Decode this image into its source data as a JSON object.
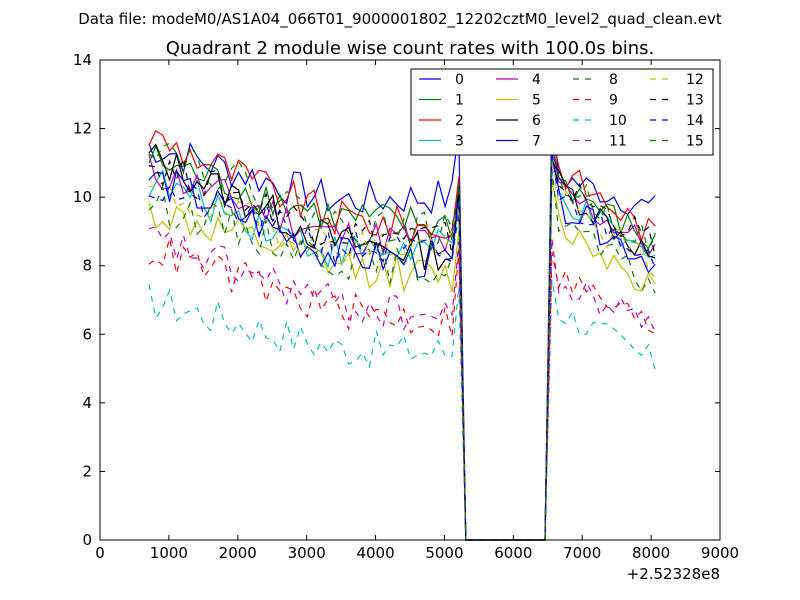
{
  "header": {
    "data_file": "Data file: modeM0/AS1A04_066T01_9000001802_12202cztM0_level2_quad_clean.evt"
  },
  "chart_data": {
    "type": "line",
    "title": "Quadrant 2 module wise count rates with 100.0s bins.",
    "xlabel": "",
    "ylabel": "",
    "x_offset_label": "+2.52328e8",
    "xlim": [
      0,
      9000
    ],
    "ylim": [
      0,
      14
    ],
    "x_ticks": [
      0,
      1000,
      2000,
      3000,
      4000,
      5000,
      6000,
      7000,
      8000,
      9000
    ],
    "y_ticks": [
      0,
      2,
      4,
      6,
      8,
      10,
      12,
      14
    ],
    "grid": false,
    "legend_position": "top-right",
    "legend_columns": 4,
    "x_first": 710,
    "x_step": 100,
    "gap_start": 5310,
    "gap_end": 6460,
    "x_last": 8110,
    "series": [
      {
        "name": "0",
        "color": "#0000ff",
        "dash": "solid",
        "base": 11.5,
        "mid": 9.9,
        "late_base": 10.0,
        "after": 10.6,
        "end": 9.6,
        "peak_before": 11.9,
        "peak_after": 12.7
      },
      {
        "name": "1",
        "color": "#008000",
        "dash": "solid",
        "base": 11.1,
        "mid": 9.4,
        "late_base": 9.2,
        "after": 10.5,
        "end": 8.5,
        "peak_before": 10.5,
        "peak_after": 11.7
      },
      {
        "name": "2",
        "color": "#ff0000",
        "dash": "solid",
        "base": 11.8,
        "mid": 9.4,
        "late_base": 9.1,
        "after": 10.8,
        "end": 8.8,
        "peak_before": 10.6,
        "peak_after": 11.8
      },
      {
        "name": "3",
        "color": "#00bfbf",
        "dash": "solid",
        "base": 10.5,
        "mid": 8.4,
        "late_base": 8.5,
        "after": 10.0,
        "end": 8.0,
        "peak_before": 10.1,
        "peak_after": 11.6
      },
      {
        "name": "4",
        "color": "#bf00bf",
        "dash": "solid",
        "base": 10.8,
        "mid": 8.9,
        "late_base": 8.7,
        "after": 10.2,
        "end": 8.4,
        "peak_before": 10.2,
        "peak_after": 11.5
      },
      {
        "name": "5",
        "color": "#bfbf00",
        "dash": "solid",
        "base": 9.6,
        "mid": 8.0,
        "late_base": 7.7,
        "after": 9.2,
        "end": 7.3,
        "peak_before": 9.0,
        "peak_after": 10.5
      },
      {
        "name": "6",
        "color": "#000000",
        "dash": "solid",
        "base": 11.2,
        "mid": 8.7,
        "late_base": 8.4,
        "after": 10.4,
        "end": 8.1,
        "peak_before": 10.2,
        "peak_after": 11.0
      },
      {
        "name": "7",
        "color": "#0000ff",
        "dash": "solid",
        "base": 10.6,
        "mid": 8.3,
        "late_base": 8.1,
        "after": 9.8,
        "end": 8.0,
        "peak_before": 10.0,
        "peak_after": 11.2
      },
      {
        "name": "8",
        "color": "#008000",
        "dash": "dashed",
        "base": 9.9,
        "mid": 8.2,
        "late_base": 7.9,
        "after": 9.4,
        "end": 7.2,
        "peak_before": 9.5,
        "peak_after": 10.8
      },
      {
        "name": "9",
        "color": "#ff0000",
        "dash": "dashed",
        "base": 8.5,
        "mid": 6.7,
        "late_base": 6.4,
        "after": 7.7,
        "end": 6.1,
        "peak_before": 8.5,
        "peak_after": 8.4
      },
      {
        "name": "10",
        "color": "#00bfbf",
        "dash": "dashed",
        "base": 7.0,
        "mid": 5.6,
        "late_base": 5.5,
        "after": 6.7,
        "end": 5.1,
        "peak_before": 7.4,
        "peak_after": 7.6
      },
      {
        "name": "11",
        "color": "#bf00bf",
        "dash": "dashed",
        "base": 8.8,
        "mid": 6.9,
        "late_base": 6.5,
        "after": 7.4,
        "end": 6.3,
        "peak_before": 8.7,
        "peak_after": 8.8
      },
      {
        "name": "12",
        "color": "#bfbf00",
        "dash": "dashed",
        "base": 10.2,
        "mid": 8.6,
        "late_base": 8.6,
        "after": 9.9,
        "end": 7.9,
        "peak_before": 9.8,
        "peak_after": 11.1
      },
      {
        "name": "13",
        "color": "#000000",
        "dash": "dashed",
        "base": 11.0,
        "mid": 9.0,
        "late_base": 8.8,
        "after": 10.4,
        "end": 8.6,
        "peak_before": 10.3,
        "peak_after": 11.2
      },
      {
        "name": "14",
        "color": "#0000ff",
        "dash": "dashed",
        "base": 10.3,
        "mid": 8.6,
        "late_base": 8.3,
        "after": 9.9,
        "end": 8.3,
        "peak_before": 9.9,
        "peak_after": 11.3
      },
      {
        "name": "15",
        "color": "#008000",
        "dash": "dashed",
        "base": 11.7,
        "mid": 9.2,
        "late_base": 9.0,
        "after": 10.5,
        "end": 8.5,
        "peak_before": 10.4,
        "peak_after": 11.7
      }
    ]
  }
}
